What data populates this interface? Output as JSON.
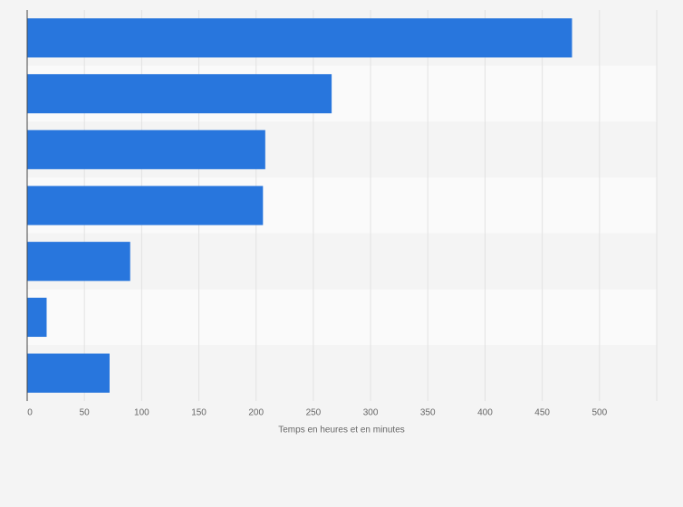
{
  "chart_data": {
    "type": "bar",
    "orientation": "horizontal",
    "categories": [
      null,
      null,
      null,
      null,
      null,
      null,
      null
    ],
    "values": [
      476,
      266,
      208,
      206,
      90,
      17,
      72
    ],
    "color": "#2876dd",
    "xlabel": "Temps en heures et en minutes",
    "xlim": [
      0,
      550
    ],
    "xticks": [
      0,
      50,
      100,
      150,
      200,
      250,
      300,
      350,
      400,
      450,
      500
    ],
    "grid": true
  }
}
